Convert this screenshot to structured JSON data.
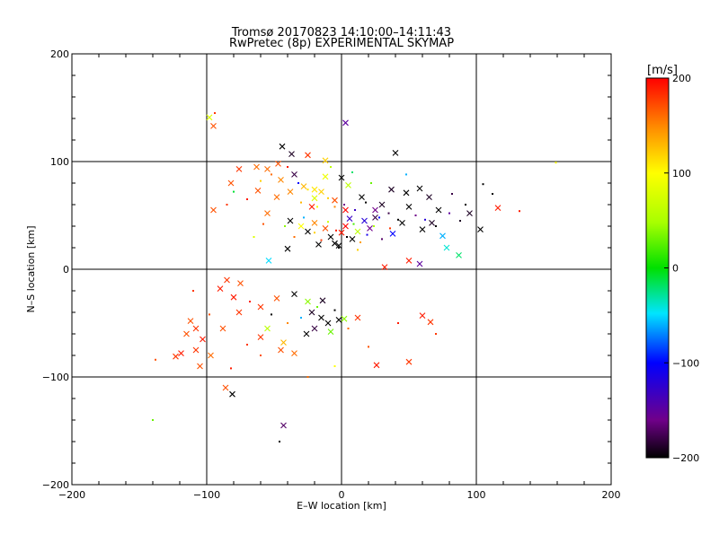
{
  "chart_data": {
    "type": "scatter",
    "title": "Tromsø 20170823 14:10:00–14:11:43",
    "subtitle": "RwPretec (8p) EXPERIMENTAL SKYMAP",
    "xlabel": "E–W location [km]",
    "ylabel": "N–S location [km]",
    "xlim": [
      -200,
      200
    ],
    "ylim": [
      -200,
      200
    ],
    "xticks": [
      "−200",
      "−100",
      "0",
      "100",
      "200"
    ],
    "yticks": [
      "−200",
      "−100",
      "0",
      "100",
      "200"
    ],
    "grid": true,
    "colorbar": {
      "label": "[m/s]",
      "range": [
        -200,
        200
      ],
      "ticks": [
        "200",
        "100",
        "0",
        "−100",
        "−200"
      ]
    },
    "points": [
      {
        "x": -98,
        "y": 141,
        "v": 80,
        "m": "x"
      },
      {
        "x": -95,
        "y": 133,
        "v": 170,
        "m": "x"
      },
      {
        "x": 3,
        "y": 136,
        "v": -150,
        "m": "x"
      },
      {
        "x": -44,
        "y": 114,
        "v": -200,
        "m": "x"
      },
      {
        "x": -37,
        "y": 107,
        "v": -190,
        "m": "x"
      },
      {
        "x": -25,
        "y": 106,
        "v": 180,
        "m": "x"
      },
      {
        "x": 40,
        "y": 108,
        "v": -200,
        "m": "x"
      },
      {
        "x": -55,
        "y": 93,
        "v": 160,
        "m": "x"
      },
      {
        "x": -47,
        "y": 98,
        "v": 170,
        "m": "x"
      },
      {
        "x": -12,
        "y": 101,
        "v": 120,
        "m": "x"
      },
      {
        "x": -82,
        "y": 80,
        "v": 170,
        "m": "x"
      },
      {
        "x": -76,
        "y": 93,
        "v": 180,
        "m": "x"
      },
      {
        "x": -63,
        "y": 95,
        "v": 160,
        "m": "x"
      },
      {
        "x": -45,
        "y": 83,
        "v": 150,
        "m": "x"
      },
      {
        "x": -35,
        "y": 88,
        "v": -180,
        "m": "x"
      },
      {
        "x": -28,
        "y": 77,
        "v": 130,
        "m": "x"
      },
      {
        "x": -20,
        "y": 74,
        "v": 110,
        "m": "x"
      },
      {
        "x": -12,
        "y": 86,
        "v": 90,
        "m": "x"
      },
      {
        "x": 0,
        "y": 85,
        "v": -200,
        "m": "x"
      },
      {
        "x": 5,
        "y": 78,
        "v": 60,
        "m": "x"
      },
      {
        "x": 48,
        "y": 71,
        "v": -200,
        "m": "x"
      },
      {
        "x": 37,
        "y": 74,
        "v": -190,
        "m": "x"
      },
      {
        "x": 58,
        "y": 75,
        "v": -200,
        "m": "x"
      },
      {
        "x": 65,
        "y": 67,
        "v": -190,
        "m": "x"
      },
      {
        "x": -62,
        "y": 73,
        "v": 170,
        "m": "x"
      },
      {
        "x": -48,
        "y": 67,
        "v": 160,
        "m": "x"
      },
      {
        "x": -38,
        "y": 72,
        "v": 150,
        "m": "x"
      },
      {
        "x": -20,
        "y": 66,
        "v": 80,
        "m": "x"
      },
      {
        "x": -15,
        "y": 72,
        "v": 120,
        "m": "x"
      },
      {
        "x": -5,
        "y": 64,
        "v": 170,
        "m": "x"
      },
      {
        "x": 15,
        "y": 67,
        "v": -200,
        "m": "x"
      },
      {
        "x": 30,
        "y": 60,
        "v": -190,
        "m": "x"
      },
      {
        "x": 25,
        "y": 55,
        "v": -160,
        "m": "x"
      },
      {
        "x": 50,
        "y": 58,
        "v": -200,
        "m": "x"
      },
      {
        "x": 72,
        "y": 55,
        "v": -200,
        "m": "x"
      },
      {
        "x": 95,
        "y": 52,
        "v": -190,
        "m": "x"
      },
      {
        "x": 116,
        "y": 57,
        "v": 190,
        "m": "x"
      },
      {
        "x": 103,
        "y": 37,
        "v": -200,
        "m": "x"
      },
      {
        "x": -95,
        "y": 55,
        "v": 170,
        "m": "x"
      },
      {
        "x": -55,
        "y": 52,
        "v": 160,
        "m": "x"
      },
      {
        "x": -38,
        "y": 45,
        "v": -200,
        "m": "x"
      },
      {
        "x": -30,
        "y": 40,
        "v": 100,
        "m": "x"
      },
      {
        "x": -25,
        "y": 35,
        "v": -200,
        "m": "x"
      },
      {
        "x": -20,
        "y": 43,
        "v": 150,
        "m": "x"
      },
      {
        "x": -12,
        "y": 38,
        "v": 170,
        "m": "x"
      },
      {
        "x": -8,
        "y": 30,
        "v": -200,
        "m": "x"
      },
      {
        "x": -5,
        "y": 24,
        "v": -200,
        "m": "x"
      },
      {
        "x": 0,
        "y": 34,
        "v": 190,
        "m": "x"
      },
      {
        "x": 3,
        "y": 40,
        "v": 200,
        "m": "x"
      },
      {
        "x": 8,
        "y": 28,
        "v": -200,
        "m": "x"
      },
      {
        "x": 12,
        "y": 35,
        "v": 60,
        "m": "x"
      },
      {
        "x": 17,
        "y": 45,
        "v": -120,
        "m": "x"
      },
      {
        "x": 21,
        "y": 38,
        "v": -160,
        "m": "x"
      },
      {
        "x": 25,
        "y": 48,
        "v": -180,
        "m": "x"
      },
      {
        "x": 38,
        "y": 33,
        "v": -100,
        "m": "x"
      },
      {
        "x": 45,
        "y": 43,
        "v": -200,
        "m": "x"
      },
      {
        "x": 60,
        "y": 37,
        "v": -200,
        "m": "x"
      },
      {
        "x": 67,
        "y": 43,
        "v": -190,
        "m": "x"
      },
      {
        "x": 75,
        "y": 31,
        "v": -60,
        "m": "x"
      },
      {
        "x": 78,
        "y": 20,
        "v": -40,
        "m": "x"
      },
      {
        "x": 87,
        "y": 13,
        "v": -20,
        "m": "x"
      },
      {
        "x": 58,
        "y": 5,
        "v": -150,
        "m": "x"
      },
      {
        "x": 50,
        "y": 8,
        "v": 190,
        "m": "x"
      },
      {
        "x": 32,
        "y": 2,
        "v": 190,
        "m": "x"
      },
      {
        "x": -54,
        "y": 8,
        "v": -50,
        "m": "x"
      },
      {
        "x": -17,
        "y": 23,
        "v": -200,
        "m": "x"
      },
      {
        "x": -2,
        "y": 22,
        "v": -200,
        "m": "x"
      },
      {
        "x": 6,
        "y": 47,
        "v": -130,
        "m": "x"
      },
      {
        "x": -85,
        "y": -10,
        "v": 180,
        "m": "x"
      },
      {
        "x": -75,
        "y": -13,
        "v": 170,
        "m": "x"
      },
      {
        "x": -90,
        "y": -18,
        "v": 190,
        "m": "x"
      },
      {
        "x": -80,
        "y": -26,
        "v": 190,
        "m": "x"
      },
      {
        "x": -76,
        "y": -40,
        "v": 180,
        "m": "x"
      },
      {
        "x": -48,
        "y": -27,
        "v": 170,
        "m": "x"
      },
      {
        "x": -35,
        "y": -23,
        "v": -200,
        "m": "x"
      },
      {
        "x": -25,
        "y": -30,
        "v": 40,
        "m": "x"
      },
      {
        "x": -14,
        "y": -29,
        "v": -190,
        "m": "x"
      },
      {
        "x": -60,
        "y": -35,
        "v": 180,
        "m": "x"
      },
      {
        "x": -22,
        "y": -40,
        "v": -190,
        "m": "x"
      },
      {
        "x": -15,
        "y": -45,
        "v": -200,
        "m": "x"
      },
      {
        "x": -10,
        "y": -50,
        "v": -200,
        "m": "x"
      },
      {
        "x": -2,
        "y": -47,
        "v": -200,
        "m": "x"
      },
      {
        "x": 2,
        "y": -46,
        "v": 40,
        "m": "x"
      },
      {
        "x": 12,
        "y": -45,
        "v": 180,
        "m": "x"
      },
      {
        "x": -20,
        "y": -55,
        "v": -180,
        "m": "x"
      },
      {
        "x": -26,
        "y": -60,
        "v": -200,
        "m": "x"
      },
      {
        "x": -8,
        "y": -58,
        "v": 30,
        "m": "x"
      },
      {
        "x": -112,
        "y": -48,
        "v": 170,
        "m": "x"
      },
      {
        "x": -108,
        "y": -55,
        "v": 180,
        "m": "x"
      },
      {
        "x": -88,
        "y": -55,
        "v": 170,
        "m": "x"
      },
      {
        "x": -55,
        "y": -55,
        "v": 60,
        "m": "x"
      },
      {
        "x": -60,
        "y": -63,
        "v": 180,
        "m": "x"
      },
      {
        "x": -115,
        "y": -60,
        "v": 170,
        "m": "x"
      },
      {
        "x": -103,
        "y": -65,
        "v": 190,
        "m": "x"
      },
      {
        "x": -108,
        "y": -75,
        "v": 180,
        "m": "x"
      },
      {
        "x": -119,
        "y": -78,
        "v": 190,
        "m": "x"
      },
      {
        "x": -123,
        "y": -81,
        "v": 180,
        "m": "x"
      },
      {
        "x": -97,
        "y": -80,
        "v": 160,
        "m": "x"
      },
      {
        "x": -105,
        "y": -90,
        "v": 170,
        "m": "x"
      },
      {
        "x": -43,
        "y": -68,
        "v": 130,
        "m": "x"
      },
      {
        "x": -45,
        "y": -75,
        "v": 170,
        "m": "x"
      },
      {
        "x": -35,
        "y": -78,
        "v": 160,
        "m": "x"
      },
      {
        "x": 66,
        "y": -49,
        "v": 180,
        "m": "x"
      },
      {
        "x": 60,
        "y": -43,
        "v": 190,
        "m": "x"
      },
      {
        "x": 50,
        "y": -86,
        "v": 180,
        "m": "x"
      },
      {
        "x": 26,
        "y": -89,
        "v": 190,
        "m": "x"
      },
      {
        "x": -86,
        "y": -110,
        "v": 170,
        "m": "x"
      },
      {
        "x": -81,
        "y": -116,
        "v": -200,
        "m": "x"
      },
      {
        "x": -43,
        "y": -145,
        "v": -170,
        "m": "x"
      },
      {
        "x": -40,
        "y": 19,
        "v": -200,
        "m": "x"
      },
      {
        "x": -22,
        "y": 58,
        "v": 190,
        "m": "x"
      },
      {
        "x": 3,
        "y": 55,
        "v": 200,
        "m": "x"
      },
      {
        "x": -140,
        "y": -140,
        "v": 30,
        "m": "d"
      },
      {
        "x": -138,
        "y": -84,
        "v": 170,
        "m": "d"
      },
      {
        "x": -46,
        "y": -160,
        "v": -200,
        "m": "d"
      },
      {
        "x": 159,
        "y": 99,
        "v": 100,
        "m": "d"
      },
      {
        "x": 132,
        "y": 54,
        "v": 190,
        "m": "d"
      },
      {
        "x": 105,
        "y": 79,
        "v": -200,
        "m": "d"
      },
      {
        "x": -94,
        "y": 145,
        "v": 180,
        "m": "d"
      },
      {
        "x": -25,
        "y": 74,
        "v": 110,
        "m": "d"
      },
      {
        "x": -30,
        "y": 62,
        "v": 130,
        "m": "d"
      },
      {
        "x": -18,
        "y": 58,
        "v": 90,
        "m": "d"
      },
      {
        "x": -10,
        "y": 66,
        "v": 120,
        "m": "d"
      },
      {
        "x": -5,
        "y": 58,
        "v": 150,
        "m": "d"
      },
      {
        "x": 2,
        "y": 60,
        "v": -160,
        "m": "d"
      },
      {
        "x": 10,
        "y": 55,
        "v": -130,
        "m": "d"
      },
      {
        "x": 18,
        "y": 62,
        "v": -200,
        "m": "d"
      },
      {
        "x": 28,
        "y": 48,
        "v": -100,
        "m": "d"
      },
      {
        "x": 35,
        "y": 52,
        "v": -180,
        "m": "d"
      },
      {
        "x": 42,
        "y": 46,
        "v": -200,
        "m": "d"
      },
      {
        "x": 55,
        "y": 50,
        "v": -160,
        "m": "d"
      },
      {
        "x": 62,
        "y": 46,
        "v": -120,
        "m": "d"
      },
      {
        "x": 70,
        "y": 40,
        "v": -200,
        "m": "d"
      },
      {
        "x": 80,
        "y": 52,
        "v": -150,
        "m": "d"
      },
      {
        "x": 88,
        "y": 45,
        "v": -190,
        "m": "d"
      },
      {
        "x": 92,
        "y": 60,
        "v": -200,
        "m": "d"
      },
      {
        "x": -42,
        "y": 40,
        "v": 40,
        "m": "d"
      },
      {
        "x": -35,
        "y": 30,
        "v": 160,
        "m": "d"
      },
      {
        "x": -28,
        "y": 48,
        "v": -60,
        "m": "d"
      },
      {
        "x": -20,
        "y": 34,
        "v": 120,
        "m": "d"
      },
      {
        "x": -15,
        "y": 27,
        "v": 180,
        "m": "d"
      },
      {
        "x": -10,
        "y": 44,
        "v": 70,
        "m": "d"
      },
      {
        "x": -4,
        "y": 36,
        "v": 190,
        "m": "d"
      },
      {
        "x": 4,
        "y": 30,
        "v": -200,
        "m": "d"
      },
      {
        "x": 9,
        "y": 42,
        "v": 20,
        "m": "d"
      },
      {
        "x": 14,
        "y": 25,
        "v": 140,
        "m": "d"
      },
      {
        "x": 19,
        "y": 32,
        "v": -110,
        "m": "d"
      },
      {
        "x": 24,
        "y": 40,
        "v": 50,
        "m": "d"
      },
      {
        "x": 30,
        "y": 28,
        "v": -170,
        "m": "d"
      },
      {
        "x": 36,
        "y": 38,
        "v": 180,
        "m": "d"
      },
      {
        "x": -65,
        "y": 30,
        "v": 80,
        "m": "d"
      },
      {
        "x": -58,
        "y": 42,
        "v": 170,
        "m": "d"
      },
      {
        "x": -70,
        "y": 65,
        "v": 190,
        "m": "d"
      },
      {
        "x": -80,
        "y": 72,
        "v": -10,
        "m": "d"
      },
      {
        "x": -85,
        "y": 60,
        "v": 180,
        "m": "d"
      },
      {
        "x": -60,
        "y": 82,
        "v": 120,
        "m": "d"
      },
      {
        "x": -52,
        "y": 88,
        "v": 160,
        "m": "d"
      },
      {
        "x": -40,
        "y": 95,
        "v": 190,
        "m": "d"
      },
      {
        "x": -32,
        "y": 80,
        "v": -100,
        "m": "d"
      },
      {
        "x": -8,
        "y": 95,
        "v": 60,
        "m": "d"
      },
      {
        "x": 8,
        "y": 90,
        "v": -20,
        "m": "d"
      },
      {
        "x": -110,
        "y": -20,
        "v": 180,
        "m": "d"
      },
      {
        "x": -98,
        "y": -42,
        "v": 170,
        "m": "d"
      },
      {
        "x": -68,
        "y": -30,
        "v": 190,
        "m": "d"
      },
      {
        "x": -52,
        "y": -42,
        "v": -200,
        "m": "d"
      },
      {
        "x": -40,
        "y": -50,
        "v": 150,
        "m": "d"
      },
      {
        "x": -30,
        "y": -45,
        "v": -60,
        "m": "d"
      },
      {
        "x": -18,
        "y": -35,
        "v": 30,
        "m": "d"
      },
      {
        "x": -5,
        "y": -38,
        "v": -200,
        "m": "d"
      },
      {
        "x": 5,
        "y": -55,
        "v": 160,
        "m": "d"
      },
      {
        "x": -70,
        "y": -70,
        "v": 180,
        "m": "d"
      },
      {
        "x": -82,
        "y": -92,
        "v": 190,
        "m": "d"
      },
      {
        "x": -60,
        "y": -80,
        "v": 170,
        "m": "d"
      },
      {
        "x": -5,
        "y": -90,
        "v": 100,
        "m": "d"
      },
      {
        "x": 70,
        "y": -60,
        "v": 180,
        "m": "d"
      },
      {
        "x": 42,
        "y": -50,
        "v": 190,
        "m": "d"
      },
      {
        "x": 20,
        "y": -72,
        "v": 170,
        "m": "d"
      },
      {
        "x": -25,
        "y": -100,
        "v": 160,
        "m": "d"
      },
      {
        "x": 112,
        "y": 70,
        "v": -200,
        "m": "d"
      },
      {
        "x": 82,
        "y": 70,
        "v": -180,
        "m": "d"
      },
      {
        "x": 48,
        "y": 88,
        "v": -60,
        "m": "d"
      },
      {
        "x": 22,
        "y": 80,
        "v": 30,
        "m": "d"
      },
      {
        "x": -2,
        "y": 20,
        "v": -200,
        "m": "d"
      },
      {
        "x": 12,
        "y": 18,
        "v": 120,
        "m": "d"
      }
    ]
  }
}
